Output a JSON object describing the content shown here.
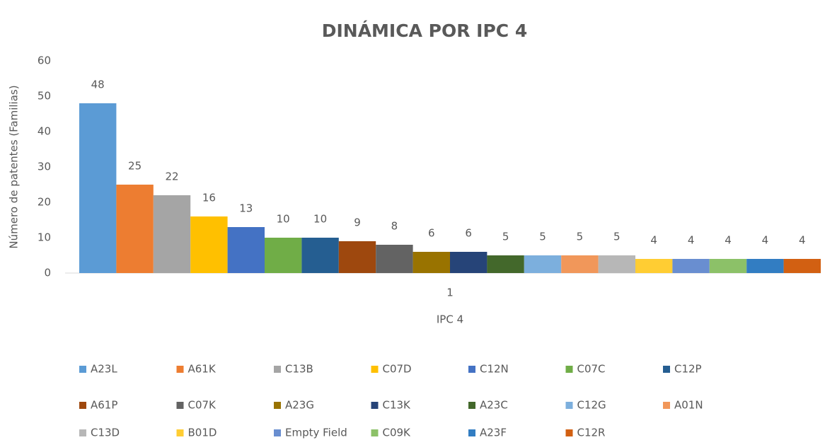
{
  "chart_data": {
    "type": "bar",
    "title": "DINÁMICA POR IPC 4",
    "x_label": "IPC 4",
    "y_label": "Número de patentes (Familias)",
    "categories": [
      "1"
    ],
    "ylim": [
      0,
      60
    ],
    "yticks": [
      0,
      10,
      20,
      30,
      40,
      50,
      60
    ],
    "grid": false,
    "legend": "bottom",
    "series": [
      {
        "name": "A23L",
        "color": "#5b9bd5",
        "values": [
          48
        ]
      },
      {
        "name": "A61K",
        "color": "#ed7d31",
        "values": [
          25
        ]
      },
      {
        "name": "C13B",
        "color": "#a5a5a5",
        "values": [
          22
        ]
      },
      {
        "name": "C07D",
        "color": "#ffc000",
        "values": [
          16
        ]
      },
      {
        "name": "C12N",
        "color": "#4472c4",
        "values": [
          13
        ]
      },
      {
        "name": "C07C",
        "color": "#70ad47",
        "values": [
          10
        ]
      },
      {
        "name": "C12P",
        "color": "#255e91",
        "values": [
          10
        ]
      },
      {
        "name": "A61P",
        "color": "#9e480e",
        "values": [
          9
        ]
      },
      {
        "name": "C07K",
        "color": "#636363",
        "values": [
          8
        ]
      },
      {
        "name": "A23G",
        "color": "#997300",
        "values": [
          6
        ]
      },
      {
        "name": "C13K",
        "color": "#264478",
        "values": [
          6
        ]
      },
      {
        "name": "A23C",
        "color": "#43682b",
        "values": [
          5
        ]
      },
      {
        "name": "C12G",
        "color": "#7cafdd",
        "values": [
          5
        ]
      },
      {
        "name": "A01N",
        "color": "#f1975a",
        "values": [
          5
        ]
      },
      {
        "name": "C13D",
        "color": "#b7b7b7",
        "values": [
          5
        ]
      },
      {
        "name": "B01D",
        "color": "#ffcd33",
        "values": [
          4
        ]
      },
      {
        "name": "Empty Field",
        "color": "#698ed0",
        "values": [
          4
        ]
      },
      {
        "name": "C09K",
        "color": "#8cc168",
        "values": [
          4
        ]
      },
      {
        "name": "A23F",
        "color": "#327dc2",
        "values": [
          4
        ]
      },
      {
        "name": "C12R",
        "color": "#d26012",
        "values": [
          4
        ]
      }
    ]
  }
}
